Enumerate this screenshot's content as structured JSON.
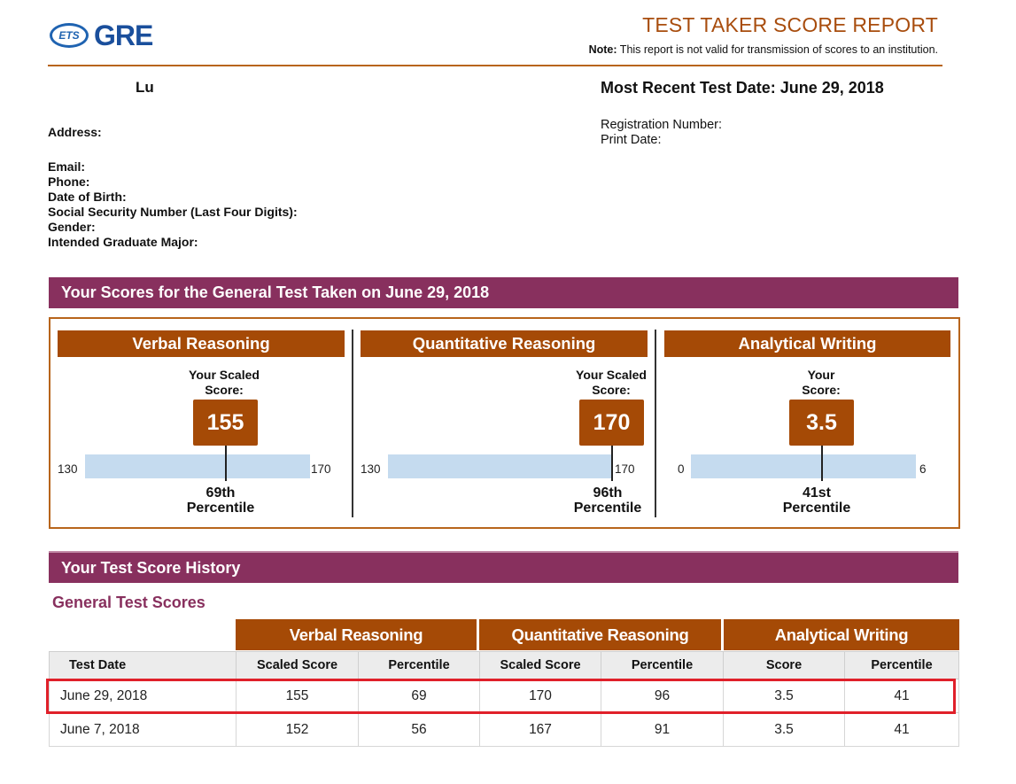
{
  "header": {
    "logo_badge": "ETS",
    "logo_text": "GRE",
    "title": "TEST TAKER SCORE REPORT",
    "note_label": "Note:",
    "note_text": " This report is not valid for transmission of scores to an institution."
  },
  "test_taker": {
    "name": "Lu",
    "most_recent_label": "Most Recent Test Date: June 29, 2018",
    "registration_label": "Registration Number:",
    "print_date_label": "Print Date:",
    "address_label": "Address:",
    "email_label": "Email:",
    "phone_label": "Phone:",
    "dob_label": "Date of Birth:",
    "ssn_label": "Social Security Number (Last Four Digits):",
    "gender_label": "Gender:",
    "major_label": "Intended Graduate Major:"
  },
  "scores_section": {
    "title": "Your Scores for the General Test Taken on June 29, 2018",
    "panels": [
      {
        "name": "Verbal Reasoning",
        "score_label": "Your Scaled Score:",
        "score_label_line1": "Your Scaled",
        "score_label_line2": "Score:",
        "score": "155",
        "min": "130",
        "max": "170",
        "percentile_line1": "69th",
        "percentile_line2": "Percentile"
      },
      {
        "name": "Quantitative Reasoning",
        "score_label": "Your Scaled Score:",
        "score_label_line1": "Your Scaled",
        "score_label_line2": "Score:",
        "score": "170",
        "min": "130",
        "max": "170",
        "percentile_line1": "96th",
        "percentile_line2": "Percentile"
      },
      {
        "name": "Analytical Writing",
        "score_label": "Your Score:",
        "score_label_line1": "Your",
        "score_label_line2": "Score:",
        "score": "3.5",
        "min": "0",
        "max": "6",
        "percentile_line1": "41st",
        "percentile_line2": "Percentile"
      }
    ]
  },
  "history_section": {
    "title": "Your Test Score History",
    "subtitle": "General Test Scores",
    "group_headers": [
      "Verbal Reasoning",
      "Quantitative Reasoning",
      "Analytical Writing"
    ],
    "columns": [
      "Test Date",
      "Scaled Score",
      "Percentile",
      "Scaled Score",
      "Percentile",
      "Score",
      "Percentile"
    ],
    "rows": [
      [
        "June 29, 2018",
        "155",
        "69",
        "170",
        "96",
        "3.5",
        "41"
      ],
      [
        "June 7, 2018",
        "152",
        "56",
        "167",
        "91",
        "3.5",
        "41"
      ]
    ]
  },
  "colors": {
    "section_bar": "#88305e",
    "score_header": "#a54a06",
    "frame": "#b8651c",
    "range_bar": "#c5dbef",
    "highlight": "#e0202a",
    "logo_blue": "#1a4f9c"
  }
}
